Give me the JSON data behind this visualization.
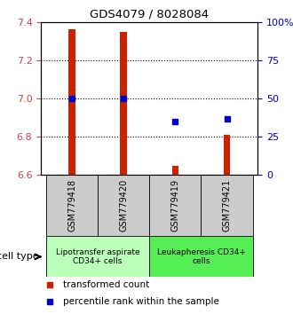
{
  "title": "GDS4079 / 8028084",
  "samples": [
    "GSM779418",
    "GSM779420",
    "GSM779419",
    "GSM779421"
  ],
  "transformed_counts": [
    7.36,
    7.35,
    6.65,
    6.81
  ],
  "percentile_ranks": [
    50,
    50,
    35,
    37
  ],
  "ylim_left": [
    6.6,
    7.4
  ],
  "yticks_left": [
    6.6,
    6.8,
    7.0,
    7.2,
    7.4
  ],
  "ylim_right": [
    0,
    100
  ],
  "yticks_right": [
    0,
    25,
    50,
    75,
    100
  ],
  "ytick_labels_right": [
    "0",
    "25",
    "50",
    "75",
    "100%"
  ],
  "bar_color": "#cc2200",
  "dot_color": "#0000cc",
  "cell_type_groups": [
    {
      "label": "Lipotransfer aspirate\nCD34+ cells",
      "indices": [
        0,
        1
      ],
      "color": "#bbffbb"
    },
    {
      "label": "Leukapheresis CD34+\ncells",
      "indices": [
        2,
        3
      ],
      "color": "#55ee55"
    }
  ],
  "sample_box_color": "#cccccc",
  "cell_type_label": "cell type",
  "legend_items": [
    {
      "color": "#cc2200",
      "label": "transformed count"
    },
    {
      "color": "#0000cc",
      "label": "percentile rank within the sample"
    }
  ],
  "left_tick_color": "#cc4444",
  "right_tick_color": "#0000cc"
}
